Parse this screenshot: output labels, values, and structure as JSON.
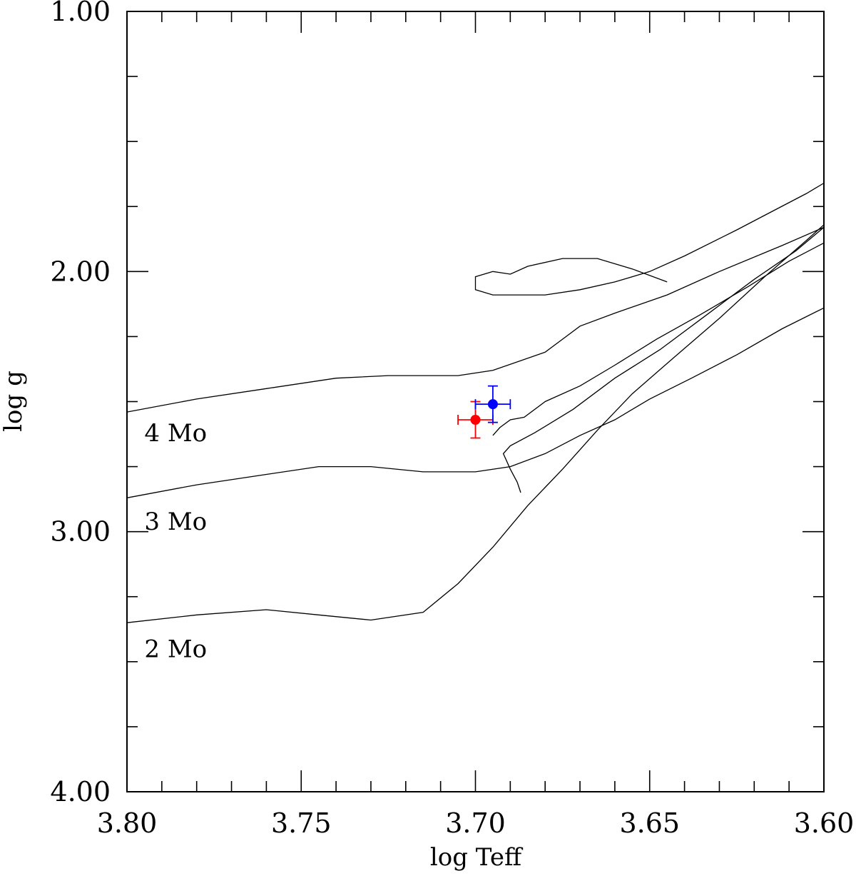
{
  "chart_data": {
    "type": "scatter",
    "xlabel": "log Teff",
    "ylabel": "log g",
    "xlim": [
      3.8,
      3.6
    ],
    "ylim": [
      1.0,
      4.0
    ],
    "x_reversed": true,
    "y_reversed": true,
    "grid": false,
    "legend": "none",
    "x_ticks": {
      "major": [
        3.8,
        3.75,
        3.7,
        3.65,
        3.6
      ],
      "major_labels": [
        "3.80",
        "3.75",
        "3.70",
        "3.65",
        "3.60"
      ],
      "minor_step": 0.01
    },
    "y_ticks": {
      "major": [
        1.0,
        2.0,
        3.0,
        4.0
      ],
      "major_labels": [
        "1.00",
        "2.00",
        "3.00",
        "4.00"
      ],
      "minor_step": 0.25
    },
    "tracks": [
      {
        "label": "4 Mo",
        "label_at": [
          3.795,
          2.62
        ],
        "segments": [
          [
            [
              3.8,
              2.54
            ],
            [
              3.78,
              2.49
            ],
            [
              3.76,
              2.45
            ],
            [
              3.74,
              2.41
            ],
            [
              3.725,
              2.4
            ],
            [
              3.705,
              2.4
            ],
            [
              3.695,
              2.38
            ],
            [
              3.68,
              2.31
            ],
            [
              3.675,
              2.26
            ],
            [
              3.67,
              2.21
            ],
            [
              3.66,
              2.16
            ],
            [
              3.645,
              2.09
            ],
            [
              3.63,
              2.0
            ],
            [
              3.612,
              1.9
            ],
            [
              3.6,
              1.83
            ]
          ],
          [
            [
              3.645,
              2.04
            ],
            [
              3.655,
              1.99
            ],
            [
              3.665,
              1.95
            ],
            [
              3.675,
              1.95
            ],
            [
              3.685,
              1.98
            ],
            [
              3.69,
              2.01
            ],
            [
              3.695,
              2.0
            ],
            [
              3.7,
              2.02
            ],
            [
              3.7,
              2.07
            ],
            [
              3.695,
              2.09
            ],
            [
              3.68,
              2.09
            ],
            [
              3.67,
              2.07
            ],
            [
              3.66,
              2.04
            ],
            [
              3.65,
              2.0
            ],
            [
              3.64,
              1.94
            ],
            [
              3.625,
              1.84
            ],
            [
              3.615,
              1.77
            ],
            [
              3.605,
              1.7
            ],
            [
              3.6,
              1.66
            ]
          ]
        ]
      },
      {
        "label": "3 Mo",
        "label_at": [
          3.795,
          2.96
        ],
        "segments": [
          [
            [
              3.8,
              2.87
            ],
            [
              3.78,
              2.82
            ],
            [
              3.76,
              2.78
            ],
            [
              3.745,
              2.75
            ],
            [
              3.73,
              2.75
            ],
            [
              3.715,
              2.77
            ],
            [
              3.7,
              2.77
            ],
            [
              3.69,
              2.75
            ],
            [
              3.68,
              2.7
            ],
            [
              3.67,
              2.63
            ],
            [
              3.66,
              2.57
            ],
            [
              3.65,
              2.49
            ],
            [
              3.638,
              2.41
            ],
            [
              3.625,
              2.32
            ],
            [
              3.612,
              2.22
            ],
            [
              3.6,
              2.14
            ]
          ],
          [
            [
              3.695,
              2.63
            ],
            [
              3.693,
              2.6
            ],
            [
              3.69,
              2.57
            ],
            [
              3.686,
              2.56
            ],
            [
              3.68,
              2.5
            ],
            [
              3.67,
              2.44
            ],
            [
              3.66,
              2.36
            ],
            [
              3.648,
              2.26
            ],
            [
              3.636,
              2.17
            ],
            [
              3.622,
              2.06
            ],
            [
              3.61,
              1.96
            ],
            [
              3.6,
              1.89
            ]
          ]
        ]
      },
      {
        "label": "2 Mo",
        "label_at": [
          3.795,
          3.45
        ],
        "segments": [
          [
            [
              3.8,
              3.35
            ],
            [
              3.78,
              3.32
            ],
            [
              3.76,
              3.3
            ],
            [
              3.745,
              3.32
            ],
            [
              3.73,
              3.34
            ],
            [
              3.715,
              3.31
            ],
            [
              3.705,
              3.2
            ],
            [
              3.695,
              3.06
            ],
            [
              3.685,
              2.9
            ],
            [
              3.675,
              2.76
            ],
            [
              3.665,
              2.61
            ],
            [
              3.655,
              2.47
            ],
            [
              3.643,
              2.33
            ],
            [
              3.63,
              2.18
            ],
            [
              3.617,
              2.02
            ],
            [
              3.605,
              1.88
            ],
            [
              3.6,
              1.82
            ]
          ],
          [
            [
              3.687,
              2.85
            ],
            [
              3.688,
              2.81
            ],
            [
              3.69,
              2.76
            ],
            [
              3.692,
              2.7
            ],
            [
              3.69,
              2.67
            ],
            [
              3.683,
              2.62
            ],
            [
              3.672,
              2.53
            ],
            [
              3.66,
              2.41
            ],
            [
              3.647,
              2.3
            ],
            [
              3.634,
              2.17
            ],
            [
              3.62,
              2.03
            ],
            [
              3.608,
              1.92
            ],
            [
              3.6,
              1.83
            ]
          ]
        ]
      }
    ],
    "points": [
      {
        "color": "#ff0000",
        "x": 3.7,
        "y": 2.57,
        "xerr": 0.005,
        "yerr": 0.07
      },
      {
        "color": "#0000ff",
        "x": 3.695,
        "y": 2.51,
        "xerr": 0.005,
        "yerr": 0.07
      }
    ]
  }
}
